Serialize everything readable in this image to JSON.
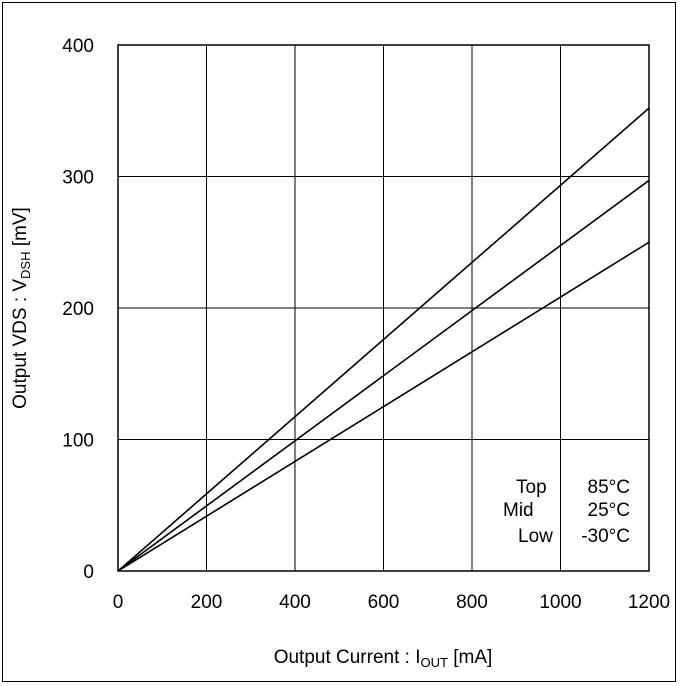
{
  "chart_data": {
    "type": "line",
    "title": "",
    "xlabel": {
      "prefix": "Output Current : I",
      "sub": "OUT",
      "suffix": " [mA]"
    },
    "ylabel": {
      "prefix": "Output VDS : V",
      "sub": "DSH",
      "suffix": " [mV]"
    },
    "xlim": [
      0,
      1200
    ],
    "ylim": [
      0,
      400
    ],
    "xticks": [
      0,
      200,
      400,
      600,
      800,
      1000,
      1200
    ],
    "yticks": [
      0,
      100,
      200,
      300,
      400
    ],
    "grid": true,
    "series": [
      {
        "name": "Top 85°C",
        "x": [
          0,
          1200
        ],
        "y": [
          0,
          352
        ]
      },
      {
        "name": "Mid 25°C",
        "x": [
          0,
          1200
        ],
        "y": [
          0,
          297
        ]
      },
      {
        "name": "Low -30°C",
        "x": [
          0,
          1200
        ],
        "y": [
          0,
          250
        ]
      }
    ],
    "legend": {
      "position": "bottom-right",
      "rows": [
        {
          "label": "Top",
          "temp": "85°C"
        },
        {
          "label": "Mid",
          "temp": "25°C"
        },
        {
          "label": "Low",
          "temp": "-30°C"
        }
      ]
    }
  }
}
